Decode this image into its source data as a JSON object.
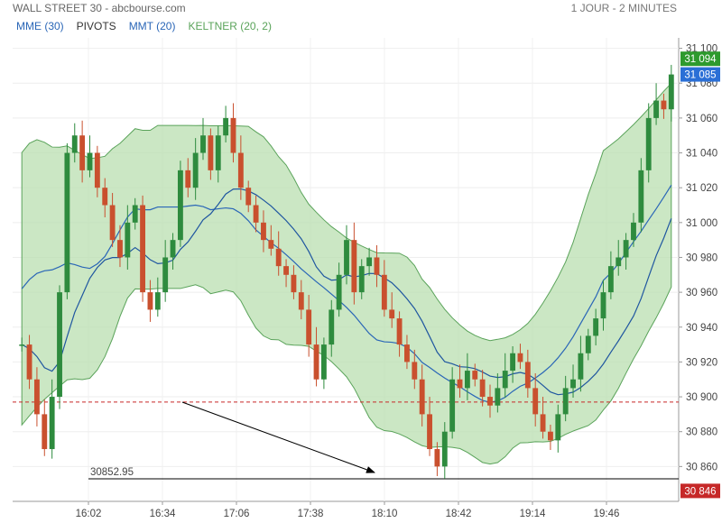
{
  "header": {
    "title": "WALL STREET 30 - abcbourse.com",
    "period": "1 JOUR - 2 MINUTES"
  },
  "legend": [
    {
      "label": "MME (30)",
      "color": "#2a66b7"
    },
    {
      "label": "PIVOTS",
      "color": "#333333"
    },
    {
      "label": "MMT (20)",
      "color": "#2a66b7"
    },
    {
      "label": "KELTNER (20, 2)",
      "color": "#5aa35a"
    }
  ],
  "chart_data": {
    "type": "candlestick",
    "x_tick_labels": [
      "16:02",
      "16:34",
      "17:06",
      "17:38",
      "18:10",
      "18:42",
      "19:14",
      "19:46"
    ],
    "y_tick_labels": [
      "31 100",
      "31 080",
      "31 060",
      "31 040",
      "31 020",
      "31 000",
      "30 980",
      "30 960",
      "30 940",
      "30 920",
      "30 900",
      "30 880",
      "30 860"
    ],
    "ylim": [
      30840,
      31106
    ],
    "price_tags": [
      {
        "label": "31 094",
        "value": 31094,
        "color": "#2e9a2e"
      },
      {
        "label": "31 085",
        "value": 31085,
        "color": "#2a6fd6"
      },
      {
        "label": "30 846",
        "value": 30846,
        "color": "#c62828"
      }
    ],
    "pivot_level": 30897,
    "support_line": {
      "label": "30852.95",
      "value": 30852.95
    },
    "series_close_path": [
      30930,
      30910,
      30890,
      30870,
      30900,
      30960,
      31040,
      31050,
      31030,
      31040,
      31020,
      31010,
      30990,
      30980,
      31000,
      31010,
      30960,
      30950,
      30960,
      30980,
      30990,
      31030,
      31020,
      31040,
      31050,
      31030,
      31050,
      31060,
      31040,
      31020,
      31010,
      31000,
      30990,
      30985,
      30975,
      30970,
      30960,
      30950,
      30930,
      30910,
      30930,
      30950,
      30970,
      30990,
      30960,
      30975,
      30980,
      30970,
      30950,
      30945,
      30930,
      30920,
      30910,
      30890,
      30870,
      30860,
      30880,
      30910,
      30905,
      30915,
      30910,
      30900,
      30895,
      30905,
      30915,
      30925,
      30920,
      30905,
      30890,
      30880,
      30875,
      30890,
      30905,
      30910,
      30925,
      30935,
      30945,
      30960,
      30975,
      30980,
      30990,
      31000,
      31030,
      31060,
      31070,
      31065,
      31085
    ],
    "annotation_arrow": {
      "from": "near 16:50 / 30900",
      "to": "near 18:10 / 30855"
    }
  }
}
